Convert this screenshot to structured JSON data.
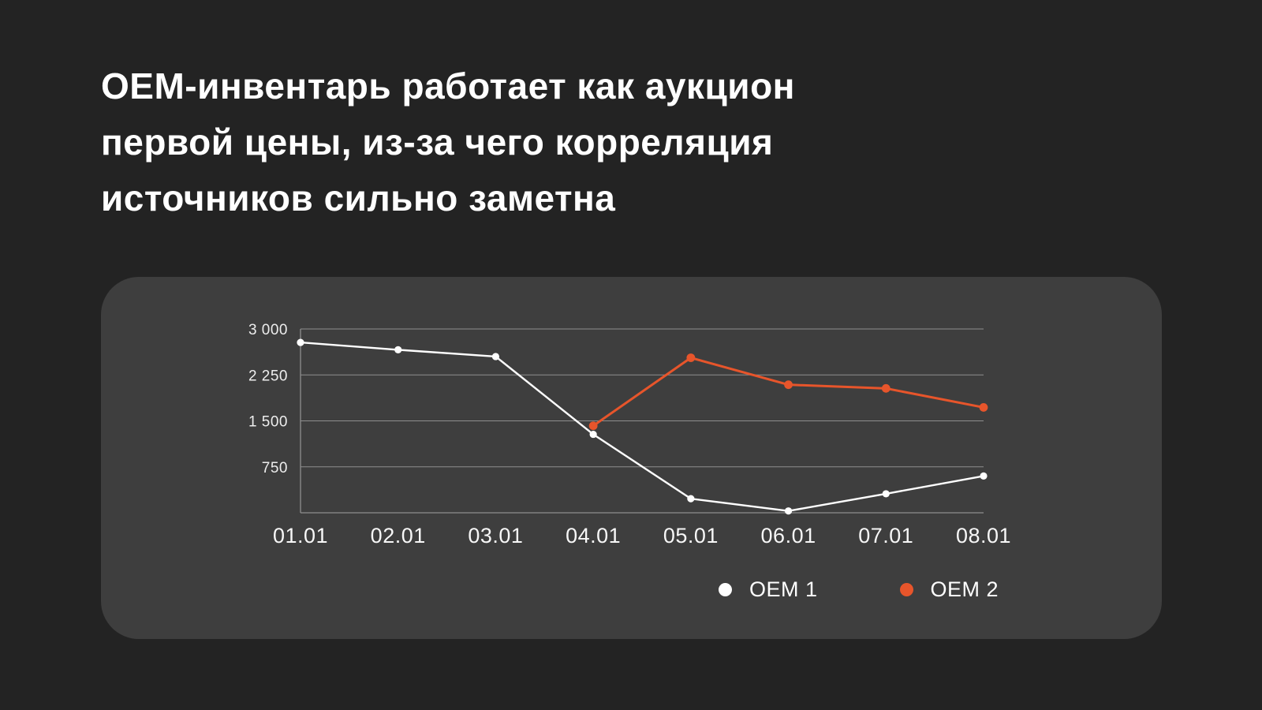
{
  "title": {
    "lines": [
      "OEM-инвентарь работает как аукцион",
      "первой цены, из-за чего корреляция",
      "источников сильно заметна"
    ]
  },
  "colors": {
    "background": "#232323",
    "card": "#3E3E3E",
    "grid": "#8E8E8E",
    "y_tick_text": "#EDEDED",
    "x_tick_text": "#F7F7F7",
    "title_text": "#FFFFFF"
  },
  "chart_data": {
    "type": "line",
    "categories": [
      "01.01",
      "02.01",
      "03.01",
      "04.01",
      "05.01",
      "06.01",
      "07.01",
      "08.01"
    ],
    "series": [
      {
        "name": "OEM 1",
        "color": "#FFFFFF",
        "values": [
          2780,
          2660,
          2550,
          1280,
          230,
          30,
          310,
          600
        ]
      },
      {
        "name": "OEM 2",
        "color": "#E7552B",
        "values": [
          null,
          null,
          null,
          1420,
          2530,
          2090,
          2030,
          1720
        ]
      }
    ],
    "title": "",
    "xlabel": "",
    "ylabel": "",
    "ylim": [
      0,
      3000
    ],
    "yticks": [
      {
        "value": 3000,
        "label": "3 000"
      },
      {
        "value": 2250,
        "label": "2 250"
      },
      {
        "value": 1500,
        "label": "1 500"
      },
      {
        "value": 750,
        "label": "750"
      }
    ],
    "grid": "horizontal",
    "legend_position": "bottom-right"
  }
}
